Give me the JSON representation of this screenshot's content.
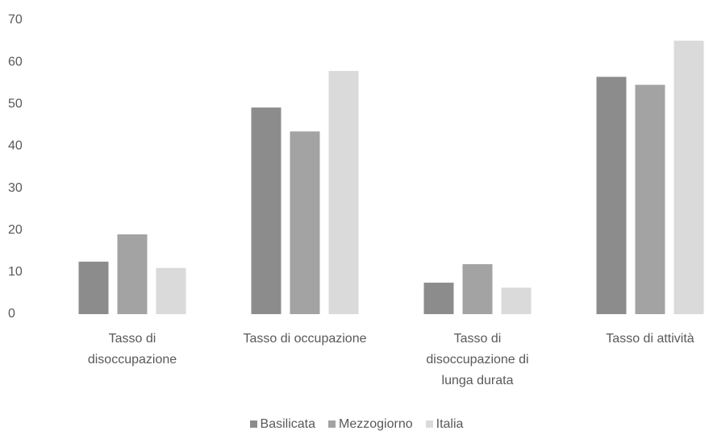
{
  "chart_data": {
    "type": "bar",
    "categories": [
      "Tasso di disoccupazione",
      "Tasso di occupazione",
      "Tasso di disoccupazione di lunga durata",
      "Tasso di attività"
    ],
    "series": [
      {
        "name": "Basilicata",
        "color": "#8c8c8c",
        "values": [
          12.5,
          49.2,
          7.5,
          56.5
        ]
      },
      {
        "name": "Mezzogiorno",
        "color": "#a3a3a3",
        "values": [
          19,
          43.5,
          11.9,
          54.6
        ]
      },
      {
        "name": "Italia",
        "color": "#dadada",
        "values": [
          11,
          57.9,
          6.3,
          65.1
        ]
      }
    ],
    "ylim": [
      0,
      70
    ],
    "yticks": [
      0,
      10,
      20,
      30,
      40,
      50,
      60,
      70
    ],
    "grid": false,
    "legend": "bottom"
  }
}
